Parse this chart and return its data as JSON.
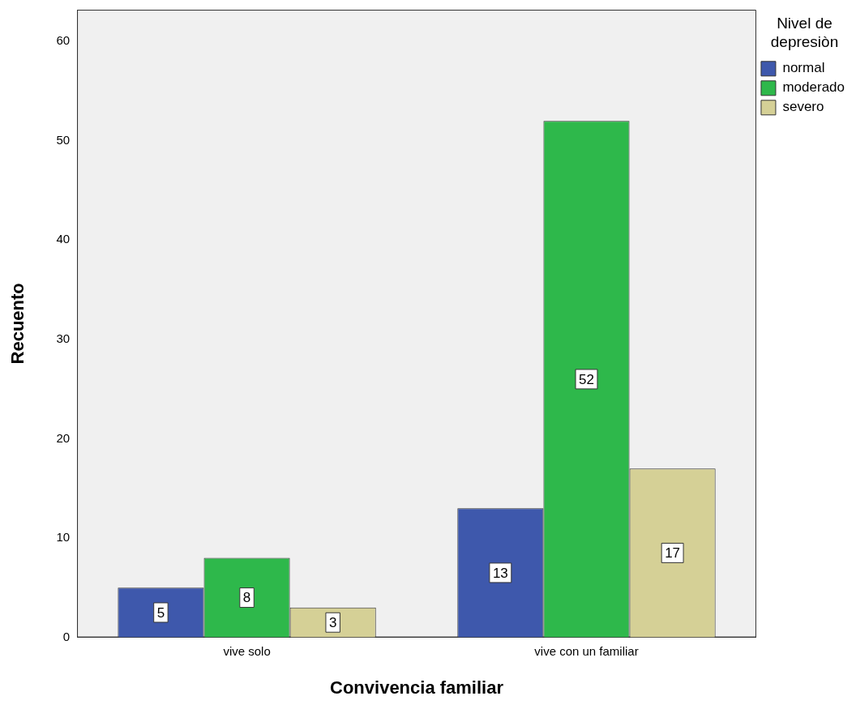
{
  "chart_data": {
    "type": "bar",
    "xlabel": "Convivencia familiar",
    "ylabel": "Recuento",
    "legend_title": "Nivel de depresiòn",
    "categories": [
      "vive solo",
      "vive con un familiar"
    ],
    "series": [
      {
        "name": "normal",
        "color": "#3e58ac",
        "values": [
          5,
          13
        ]
      },
      {
        "name": "moderado",
        "color": "#2eb84b",
        "values": [
          8,
          52
        ]
      },
      {
        "name": "severo",
        "color": "#d5d096",
        "values": [
          3,
          17
        ]
      }
    ],
    "ylim": [
      0,
      63.2
    ],
    "yticks": [
      0,
      10,
      20,
      30,
      40,
      50,
      60
    ],
    "grid": false,
    "legend": "top right",
    "data_labels": true
  }
}
